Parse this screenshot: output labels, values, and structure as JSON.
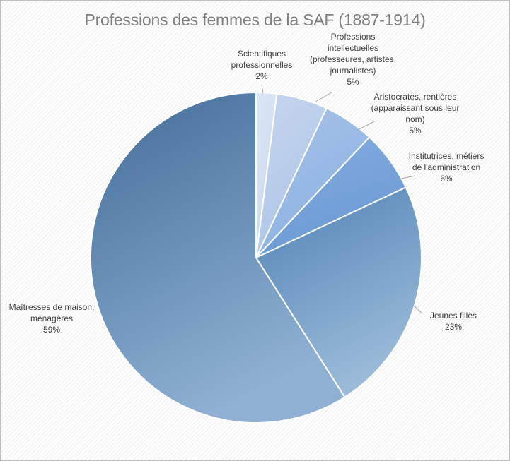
{
  "chart_data": {
    "type": "pie",
    "title": "Professions des femmes de la SAF (1887-1914)",
    "slices": [
      {
        "label": [
          "Scientifiques",
          "professionnelles"
        ],
        "percent_label": "2%",
        "value": 2,
        "color_from": "#dce6f4",
        "color_to": "#cbd9ee"
      },
      {
        "label": [
          "Professions",
          "intellectuelles",
          "(professeures, artistes,",
          "journalistes)"
        ],
        "percent_label": "5%",
        "value": 5,
        "color_from": "#c6d6ee",
        "color_to": "#aec6e8"
      },
      {
        "label": [
          "Aristocrates, rentières",
          "(apparaissant sous leur",
          "nom)"
        ],
        "percent_label": "5%",
        "value": 5,
        "color_from": "#a7c2e8",
        "color_to": "#8db2e2"
      },
      {
        "label": [
          "Institutrices, métiers",
          "de l'administration"
        ],
        "percent_label": "6%",
        "value": 6,
        "color_from": "#84addf",
        "color_to": "#6b9ad4"
      },
      {
        "label": [
          "Jeunes filles"
        ],
        "percent_label": "23%",
        "value": 23,
        "color_from": "#4f82b6",
        "color_to": "#9bbad8"
      },
      {
        "label": [
          "Maîtresses de maison,",
          "ménagères"
        ],
        "percent_label": "59%",
        "value": 59,
        "color_from": "#436d97",
        "color_to": "#8fb0d3"
      }
    ],
    "legend": "none",
    "data_labels": "outside-with-leader-lines"
  }
}
